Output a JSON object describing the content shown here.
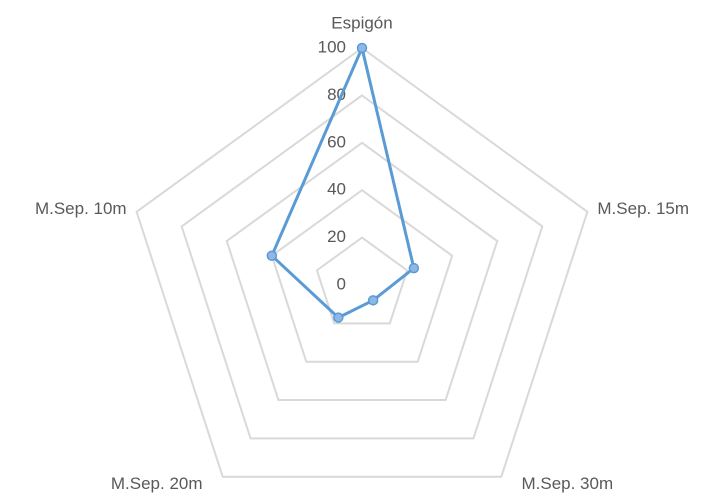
{
  "chart_data": {
    "type": "radar",
    "categories": [
      "Espigón",
      "M.Sep. 15m",
      "M.Sep. 30m",
      "M.Sep. 20m",
      "M.Sep. 10m"
    ],
    "series": [
      {
        "color": "#5b9bd5",
        "values": [
          100,
          23,
          8,
          17,
          40
        ]
      }
    ],
    "ylim": [
      0,
      100
    ],
    "yticks": [
      0,
      20,
      40,
      60,
      80,
      100
    ],
    "grid": true
  }
}
